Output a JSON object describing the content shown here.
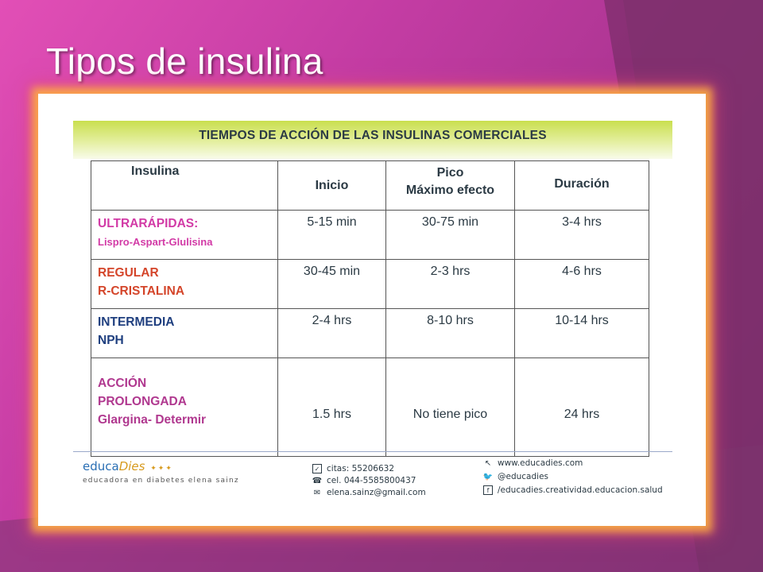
{
  "slide": {
    "title": "Tipos de insulina"
  },
  "table_image": {
    "banner": "TIEMPOS DE ACCIÓN DE LAS INSULINAS COMERCIALES",
    "headers": {
      "insulina": "Insulina",
      "inicio": "Inicio",
      "pico_line1": "Pico",
      "pico_line2": "Máximo efecto",
      "duracion": "Duración"
    },
    "rows": [
      {
        "name_line1": "ULTRARÁPIDAS:",
        "name_line2": "Lispro-Aspart-Glulisina",
        "inicio": "5-15 min",
        "pico": "30-75 min",
        "duracion": "3-4 hrs"
      },
      {
        "name_line1": "REGULAR",
        "name_line2": "R-CRISTALINA",
        "inicio": "30-45 min",
        "pico": "2-3 hrs",
        "duracion": "4-6 hrs"
      },
      {
        "name_line1": "INTERMEDIA",
        "name_line2": "NPH",
        "inicio": "2-4 hrs",
        "pico": "8-10 hrs",
        "duracion": "10-14 hrs"
      },
      {
        "name_line1": "ACCIÓN",
        "name_line2": "PROLONGADA",
        "name_line3": "Glargina- Determir",
        "inicio": "1.5 hrs",
        "pico": "No tiene pico",
        "duracion": "24 hrs"
      }
    ],
    "footer": {
      "logo_part1": "educa",
      "logo_part2": "Dies",
      "logo_tagline": "educadora en diabetes elena sainz",
      "citas": "citas: 55206632",
      "cel": "cel. 044-5585800437",
      "email": "elena.sainz@gmail.com",
      "web": "www.educadies.com",
      "twitter": "@educadies",
      "facebook": "/educadies.creatividad.educacion.salud"
    }
  },
  "colors": {
    "background": "#c33ca3",
    "ultrarapidas": "#d23aa6",
    "regular": "#d4452a",
    "intermedia": "#1f3f7f",
    "prolongada": "#b0388f"
  }
}
